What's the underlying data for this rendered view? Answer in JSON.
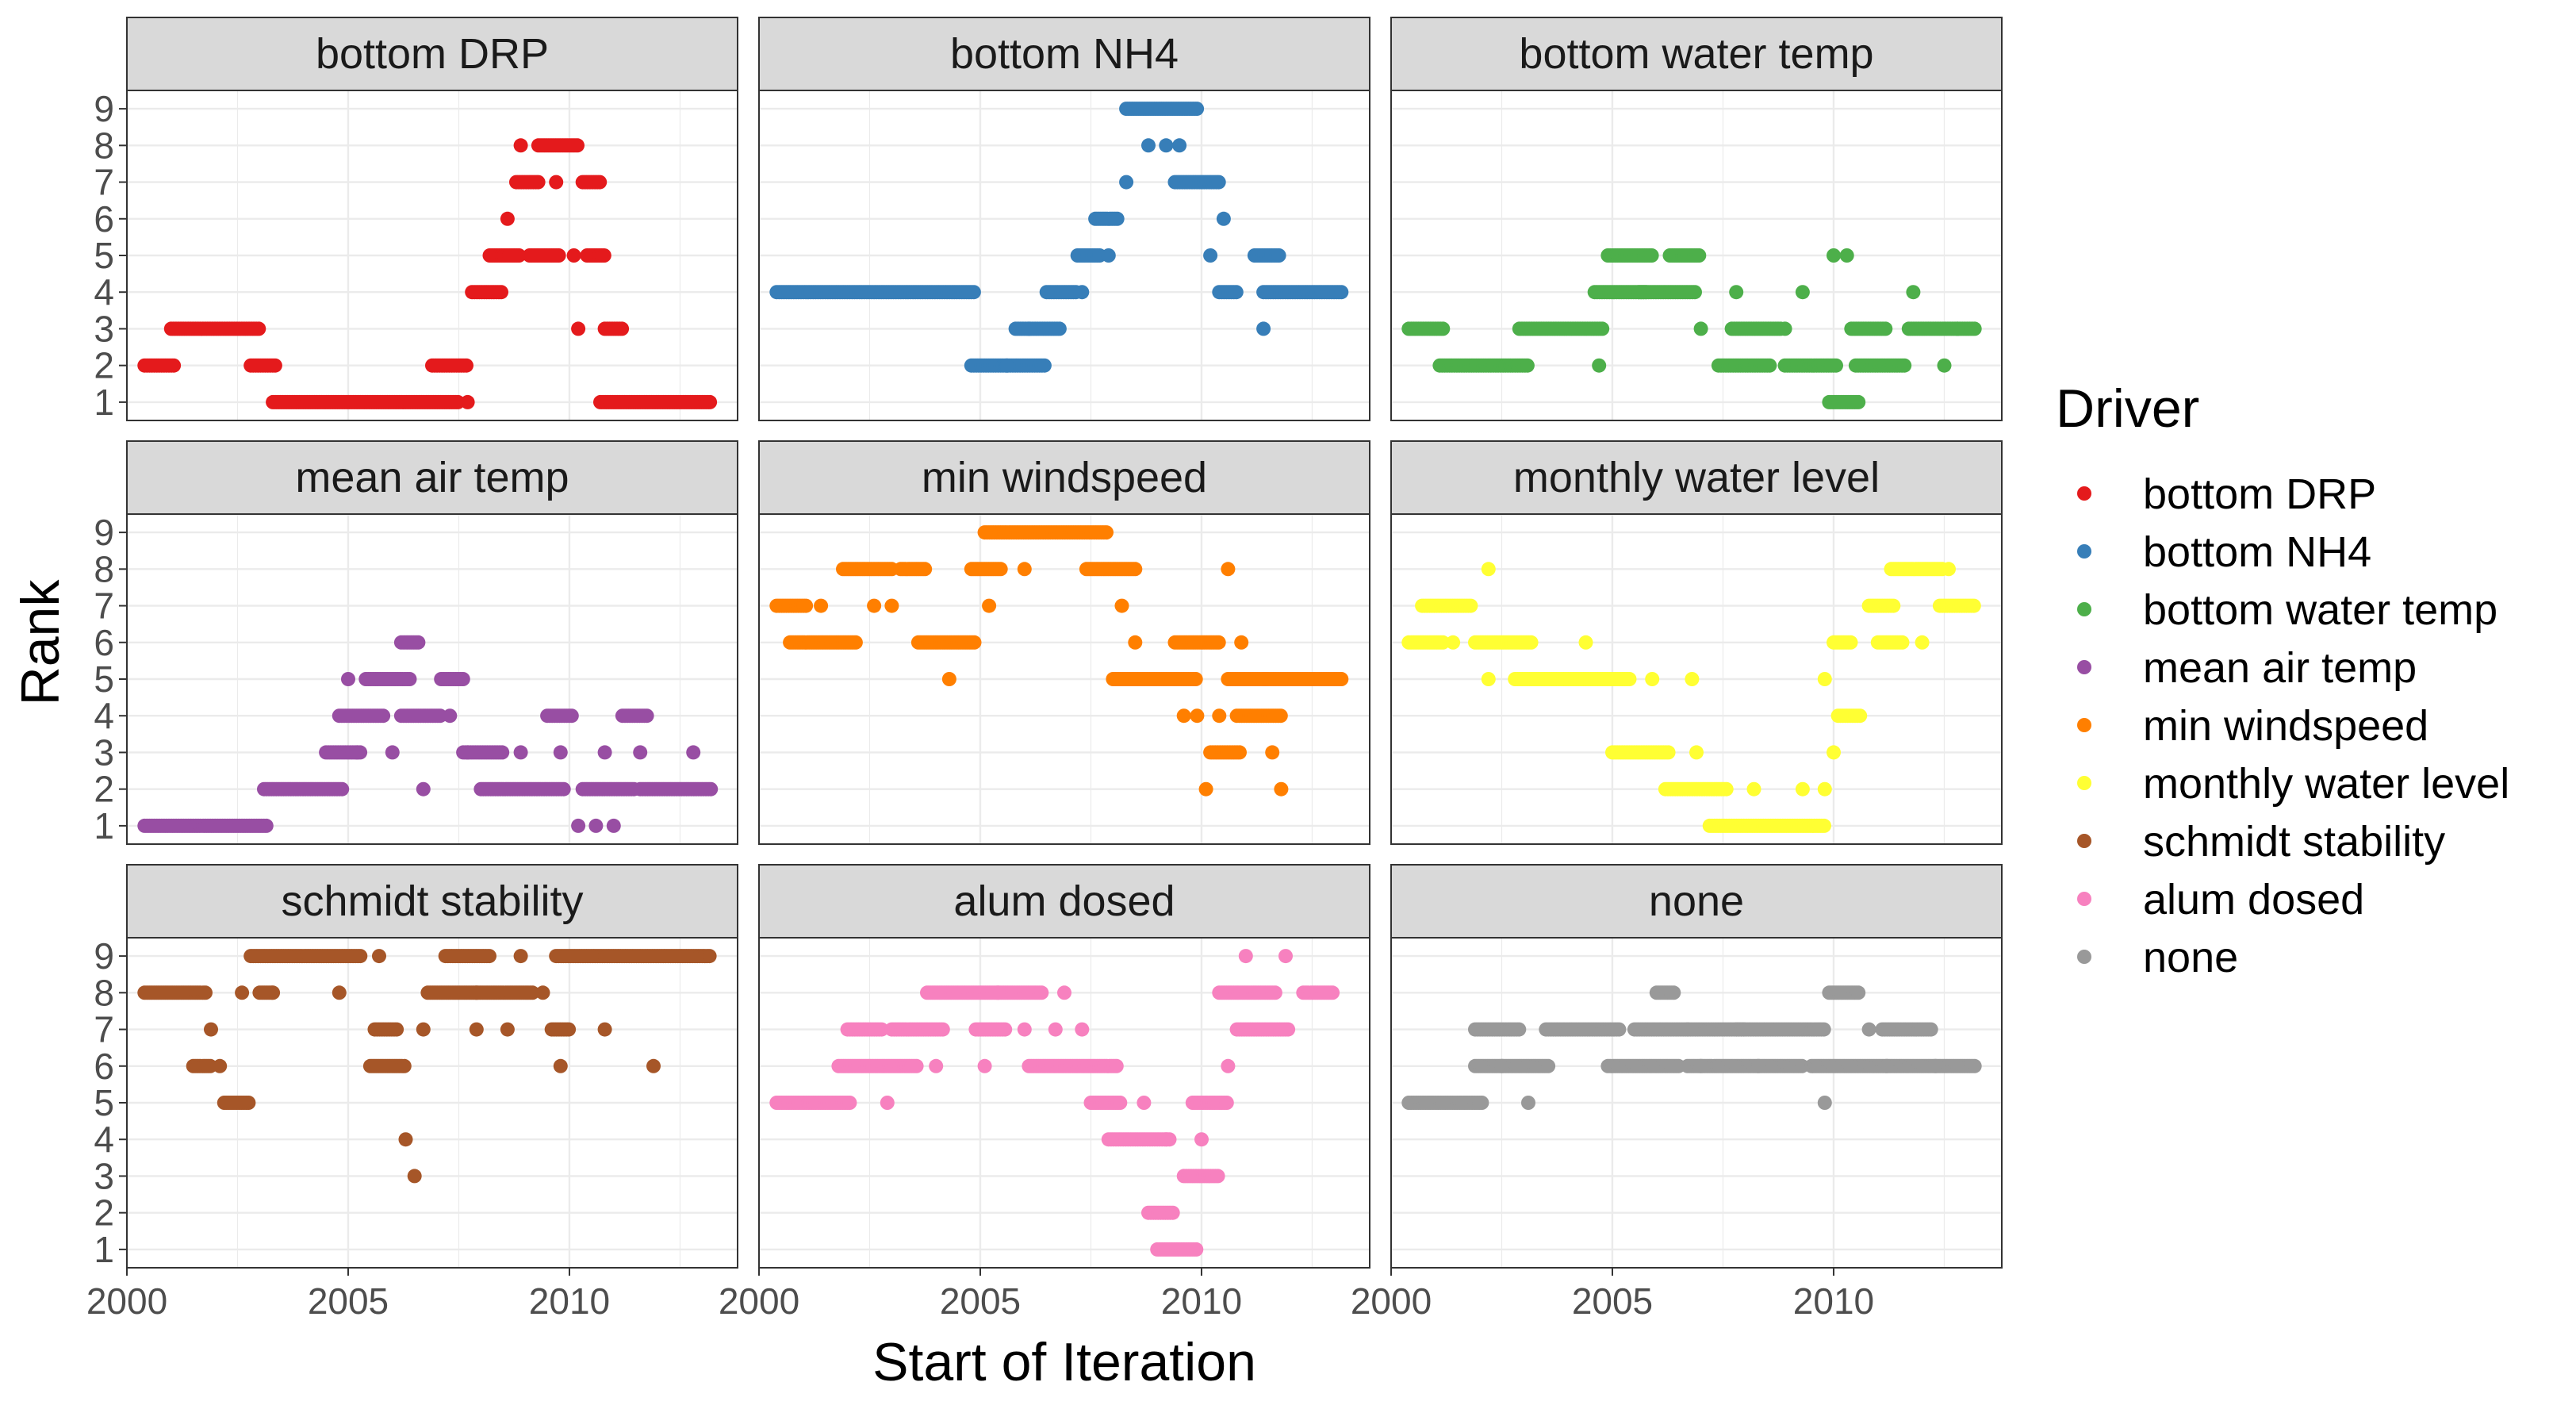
{
  "chart_data": {
    "type": "scatter",
    "xlabel": "Start of Iteration",
    "ylabel": "Rank",
    "xlim": [
      2000,
      2013.8
    ],
    "ylim": [
      0.5,
      9.5
    ],
    "x_ticks": [
      "2000",
      "2005",
      "2010"
    ],
    "x_tick_values": [
      2000,
      2005,
      2010
    ],
    "y_ticks": [
      "1",
      "2",
      "3",
      "4",
      "5",
      "6",
      "7",
      "8",
      "9"
    ],
    "grid": true,
    "facet_layout": "3x3",
    "legend_title": "Driver",
    "legend_position": "right",
    "series": [
      {
        "name": "bottom DRP",
        "color": "#E41A1C",
        "segments": [
          [
            2000.4,
            2001.1,
            2
          ],
          [
            2001.0,
            2003.0,
            3
          ],
          [
            2002.8,
            2003.4,
            2
          ],
          [
            2003.3,
            2007.5,
            1
          ],
          [
            2006.9,
            2007.7,
            2
          ],
          [
            2007.8,
            2008.5,
            4
          ],
          [
            2008.2,
            2008.9,
            5
          ],
          [
            2008.8,
            2009.3,
            7
          ],
          [
            2009.1,
            2009.8,
            5
          ],
          [
            2009.3,
            2010.2,
            8
          ],
          [
            2010.3,
            2010.7,
            7
          ],
          [
            2010.4,
            2010.8,
            5
          ],
          [
            2010.8,
            2011.2,
            3
          ],
          [
            2010.7,
            2013.2,
            1
          ]
        ],
        "points": [
          [
            2007.7,
            1
          ],
          [
            2008.6,
            6
          ],
          [
            2008.9,
            8
          ],
          [
            2009.7,
            7
          ],
          [
            2010.2,
            3
          ],
          [
            2010.1,
            5
          ]
        ]
      },
      {
        "name": "bottom NH4",
        "color": "#377EB8",
        "segments": [
          [
            2000.4,
            2004.9,
            4
          ],
          [
            2004.8,
            2006.5,
            2
          ],
          [
            2005.8,
            2006.8,
            3
          ],
          [
            2006.5,
            2007.2,
            4
          ],
          [
            2007.2,
            2007.7,
            5
          ],
          [
            2007.6,
            2008.1,
            6
          ],
          [
            2008.3,
            2009.9,
            9
          ],
          [
            2009.4,
            2010.4,
            7
          ],
          [
            2010.4,
            2010.8,
            4
          ],
          [
            2011.2,
            2011.8,
            5
          ],
          [
            2011.4,
            2013.2,
            4
          ]
        ],
        "points": [
          [
            2006.1,
            3
          ],
          [
            2005.6,
            2
          ],
          [
            2007.3,
            4
          ],
          [
            2008.3,
            7
          ],
          [
            2007.9,
            5
          ],
          [
            2008.8,
            8
          ],
          [
            2009.2,
            8
          ],
          [
            2009.5,
            8
          ],
          [
            2010.5,
            6
          ],
          [
            2010.2,
            5
          ],
          [
            2011.4,
            3
          ]
        ]
      },
      {
        "name": "bottom water temp",
        "color": "#4DAF4A",
        "segments": [
          [
            2000.4,
            2001.2,
            3
          ],
          [
            2001.1,
            2003.1,
            2
          ],
          [
            2002.9,
            2004.8,
            3
          ],
          [
            2004.6,
            2005.8,
            4
          ],
          [
            2004.9,
            2005.9,
            5
          ],
          [
            2005.6,
            2006.9,
            4
          ],
          [
            2006.3,
            2007.0,
            5
          ],
          [
            2007.7,
            2008.8,
            3
          ],
          [
            2007.4,
            2008.6,
            2
          ],
          [
            2008.9,
            2010.1,
            2
          ],
          [
            2009.9,
            2010.6,
            1
          ],
          [
            2010.4,
            2011.2,
            3
          ],
          [
            2010.5,
            2011.6,
            2
          ],
          [
            2011.7,
            2013.2,
            3
          ]
        ],
        "points": [
          [
            2004.7,
            2
          ],
          [
            2007.0,
            3
          ],
          [
            2007.8,
            4
          ],
          [
            2008.9,
            3
          ],
          [
            2009.3,
            4
          ],
          [
            2010.0,
            5
          ],
          [
            2010.3,
            5
          ],
          [
            2011.8,
            4
          ],
          [
            2012.5,
            2
          ],
          [
            2012.8,
            3
          ]
        ]
      },
      {
        "name": "mean air temp",
        "color": "#984EA3",
        "segments": [
          [
            2000.4,
            2003.2,
            1
          ],
          [
            2003.1,
            2004.9,
            2
          ],
          [
            2004.5,
            2005.3,
            3
          ],
          [
            2004.8,
            2005.8,
            4
          ],
          [
            2005.4,
            2006.4,
            5
          ],
          [
            2006.2,
            2006.6,
            6
          ],
          [
            2006.2,
            2007.1,
            4
          ],
          [
            2007.1,
            2007.6,
            5
          ],
          [
            2007.6,
            2008.5,
            3
          ],
          [
            2008.0,
            2009.9,
            2
          ],
          [
            2009.5,
            2010.1,
            4
          ],
          [
            2010.3,
            2011.5,
            2
          ],
          [
            2011.2,
            2011.8,
            4
          ],
          [
            2011.6,
            2013.2,
            2
          ]
        ],
        "points": [
          [
            2005.0,
            5
          ],
          [
            2005.2,
            3
          ],
          [
            2006.0,
            3
          ],
          [
            2006.7,
            2
          ],
          [
            2007.3,
            4
          ],
          [
            2007.7,
            3
          ],
          [
            2008.9,
            3
          ],
          [
            2009.8,
            3
          ],
          [
            2010.2,
            1
          ],
          [
            2010.6,
            1
          ],
          [
            2011.0,
            1
          ],
          [
            2010.8,
            3
          ],
          [
            2011.6,
            3
          ],
          [
            2012.8,
            3
          ]
        ]
      },
      {
        "name": "min windspeed",
        "color": "#FF7F00",
        "segments": [
          [
            2000.4,
            2001.1,
            7
          ],
          [
            2000.7,
            2002.2,
            6
          ],
          [
            2001.9,
            2003.0,
            8
          ],
          [
            2003.2,
            2003.8,
            8
          ],
          [
            2003.6,
            2004.9,
            6
          ],
          [
            2004.8,
            2005.5,
            8
          ],
          [
            2005.1,
            2007.9,
            9
          ],
          [
            2007.4,
            2008.5,
            8
          ],
          [
            2008.0,
            2009.9,
            5
          ],
          [
            2009.4,
            2010.4,
            6
          ],
          [
            2010.6,
            2011.5,
            5
          ],
          [
            2011.4,
            2013.2,
            5
          ],
          [
            2010.8,
            2011.8,
            4
          ],
          [
            2010.2,
            2010.9,
            3
          ]
        ],
        "points": [
          [
            2001.4,
            7
          ],
          [
            2002.6,
            7
          ],
          [
            2003.0,
            7
          ],
          [
            2004.3,
            5
          ],
          [
            2005.2,
            7
          ],
          [
            2006.0,
            8
          ],
          [
            2008.2,
            7
          ],
          [
            2008.5,
            6
          ],
          [
            2009.6,
            4
          ],
          [
            2009.9,
            4
          ],
          [
            2010.1,
            2
          ],
          [
            2010.4,
            4
          ],
          [
            2010.6,
            8
          ],
          [
            2011.6,
            3
          ],
          [
            2011.8,
            2
          ],
          [
            2010.9,
            6
          ]
        ]
      },
      {
        "name": "monthly water level",
        "color": "#FFFF33",
        "segments": [
          [
            2000.4,
            2001.2,
            6
          ],
          [
            2000.7,
            2001.8,
            7
          ],
          [
            2001.9,
            2003.2,
            6
          ],
          [
            2002.8,
            2005.4,
            5
          ],
          [
            2005.0,
            2006.3,
            3
          ],
          [
            2006.2,
            2007.6,
            2
          ],
          [
            2007.2,
            2009.8,
            1
          ],
          [
            2010.0,
            2010.4,
            6
          ],
          [
            2010.1,
            2010.6,
            4
          ],
          [
            2011.0,
            2011.6,
            6
          ],
          [
            2010.8,
            2011.4,
            7
          ],
          [
            2011.3,
            2012.5,
            8
          ],
          [
            2012.4,
            2013.2,
            7
          ]
        ],
        "points": [
          [
            2002.2,
            8
          ],
          [
            2001.4,
            6
          ],
          [
            2002.2,
            5
          ],
          [
            2004.4,
            6
          ],
          [
            2005.9,
            5
          ],
          [
            2006.8,
            5
          ],
          [
            2006.9,
            3
          ],
          [
            2008.2,
            2
          ],
          [
            2009.3,
            2
          ],
          [
            2009.8,
            5
          ],
          [
            2009.8,
            2
          ],
          [
            2010.0,
            3
          ],
          [
            2012.0,
            6
          ],
          [
            2012.6,
            8
          ]
        ]
      },
      {
        "name": "schmidt stability",
        "color": "#A65628",
        "segments": [
          [
            2000.4,
            2001.8,
            8
          ],
          [
            2002.8,
            2005.3,
            9
          ],
          [
            2001.5,
            2001.9,
            6
          ],
          [
            2002.2,
            2002.8,
            5
          ],
          [
            2003.0,
            2003.3,
            8
          ],
          [
            2005.5,
            2006.3,
            6
          ],
          [
            2006.8,
            2009.2,
            8
          ],
          [
            2009.7,
            2013.2,
            9
          ],
          [
            2007.2,
            2008.2,
            9
          ],
          [
            2005.6,
            2006.1,
            7
          ],
          [
            2009.6,
            2010.0,
            7
          ]
        ],
        "points": [
          [
            2001.9,
            7
          ],
          [
            2002.1,
            6
          ],
          [
            2002.6,
            8
          ],
          [
            2003.3,
            8
          ],
          [
            2004.8,
            8
          ],
          [
            2005.7,
            9
          ],
          [
            2006.3,
            4
          ],
          [
            2006.5,
            3
          ],
          [
            2006.7,
            7
          ],
          [
            2007.9,
            8
          ],
          [
            2007.9,
            7
          ],
          [
            2008.9,
            9
          ],
          [
            2008.6,
            7
          ],
          [
            2009.8,
            6
          ],
          [
            2010.8,
            7
          ],
          [
            2011.9,
            6
          ],
          [
            2009.4,
            8
          ]
        ]
      },
      {
        "name": "alum dosed",
        "color": "#F781BF",
        "segments": [
          [
            2000.4,
            2002.1,
            5
          ],
          [
            2002.0,
            2002.8,
            7
          ],
          [
            2001.8,
            2003.6,
            6
          ],
          [
            2003.0,
            2004.2,
            7
          ],
          [
            2003.8,
            2006.4,
            8
          ],
          [
            2004.9,
            2005.6,
            7
          ],
          [
            2006.1,
            2008.1,
            6
          ],
          [
            2007.5,
            2008.2,
            5
          ],
          [
            2007.9,
            2009.3,
            4
          ],
          [
            2008.8,
            2009.4,
            2
          ],
          [
            2009.0,
            2009.9,
            1
          ],
          [
            2009.6,
            2010.4,
            3
          ],
          [
            2009.8,
            2010.6,
            5
          ],
          [
            2010.4,
            2011.7,
            8
          ],
          [
            2010.8,
            2012.0,
            7
          ],
          [
            2012.3,
            2013.0,
            8
          ]
        ],
        "points": [
          [
            2002.9,
            5
          ],
          [
            2004.0,
            6
          ],
          [
            2005.1,
            6
          ],
          [
            2005.4,
            8
          ],
          [
            2006.0,
            7
          ],
          [
            2006.7,
            7
          ],
          [
            2006.9,
            8
          ],
          [
            2007.3,
            7
          ],
          [
            2008.7,
            5
          ],
          [
            2009.2,
            4
          ],
          [
            2010.0,
            4
          ],
          [
            2011.0,
            9
          ],
          [
            2011.9,
            9
          ],
          [
            2010.6,
            6
          ]
        ]
      },
      {
        "name": "none",
        "color": "#999999",
        "segments": [
          [
            2000.4,
            2002.1,
            5
          ],
          [
            2001.9,
            2002.9,
            7
          ],
          [
            2001.9,
            2003.6,
            6
          ],
          [
            2003.5,
            2005.2,
            7
          ],
          [
            2004.9,
            2006.5,
            6
          ],
          [
            2006.0,
            2006.4,
            8
          ],
          [
            2005.5,
            2008.0,
            7
          ],
          [
            2006.7,
            2009.3,
            6
          ],
          [
            2007.8,
            2009.8,
            7
          ],
          [
            2009.5,
            2013.2,
            6
          ],
          [
            2009.9,
            2010.6,
            8
          ],
          [
            2011.1,
            2012.2,
            7
          ]
        ],
        "points": [
          [
            2003.1,
            5
          ],
          [
            2002.5,
            6
          ],
          [
            2006.7,
            7
          ],
          [
            2008.3,
            6
          ],
          [
            2009.8,
            5
          ],
          [
            2010.8,
            7
          ],
          [
            2011.2,
            6
          ],
          [
            2012.3,
            6
          ],
          [
            2007.0,
            6
          ]
        ]
      }
    ]
  }
}
